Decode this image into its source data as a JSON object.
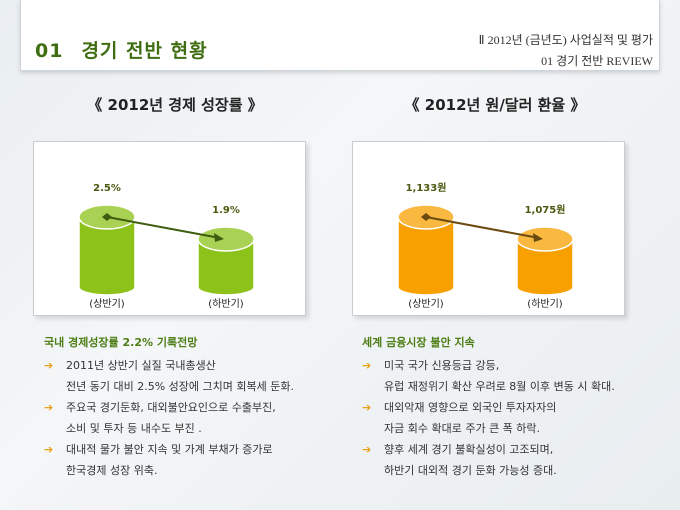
{
  "header": {
    "number": "01",
    "title": "경기 전반 현황",
    "right_line1": "Ⅱ  2012년 (금년도) 사업실적 및 평가",
    "right_line2": "01  경기 전반 REVIEW"
  },
  "colors": {
    "green": "#8cc21a",
    "orange": "#f7a000",
    "title_green": "#3f6e12"
  },
  "chart_data": [
    {
      "type": "bar",
      "style": "3d-cylinder",
      "title": "《  2012년 경제 성장률  》",
      "categories": [
        "(상반기)",
        "(하반기)"
      ],
      "values": [
        2.5,
        1.9
      ],
      "labels": [
        "2.5%",
        "1.9%"
      ],
      "color": "#8cc21a",
      "trend_arrow": "down"
    },
    {
      "type": "bar",
      "style": "3d-cylinder",
      "title": "《  2012년 원/달러 환율  》",
      "categories": [
        "(상반기)",
        "(하반기)"
      ],
      "values": [
        1133,
        1075
      ],
      "labels": [
        "1,133원",
        "1,075원"
      ],
      "color": "#f7a000",
      "trend_arrow": "down"
    }
  ],
  "left": {
    "heading": "국내 경제성장률 2.2% 기록전망",
    "items": [
      [
        "2011년 상반기 실질 국내총생산",
        "전년 동기 대비 2.5% 성장에 그치며 회복세 둔화."
      ],
      [
        "주요국 경기둔화, 대외불안요인으로 수출부진,",
        "소비 및 투자 등 내수도 부진 ."
      ],
      [
        "대내적 물가 불안 지속 및 가계 부채가 증가로",
        "한국경제 성장 위축."
      ]
    ]
  },
  "right": {
    "heading": "세계 금융시장 불안 지속",
    "items": [
      [
        "미국 국가 신용등급 강등,",
        "유럽 재정위기 확산 우려로 8월 이후 변동 시 확대."
      ],
      [
        "대외악재 영향으로 외국인 투자자자의",
        "자금 회수 확대로 주가 큰 폭 하락."
      ],
      [
        "향후 세계 경기 불확실성이 고조되며,",
        "하반기 대외적 경기 둔화 가능성 증대."
      ]
    ]
  },
  "bullet_icon": "arrow-right-icon"
}
